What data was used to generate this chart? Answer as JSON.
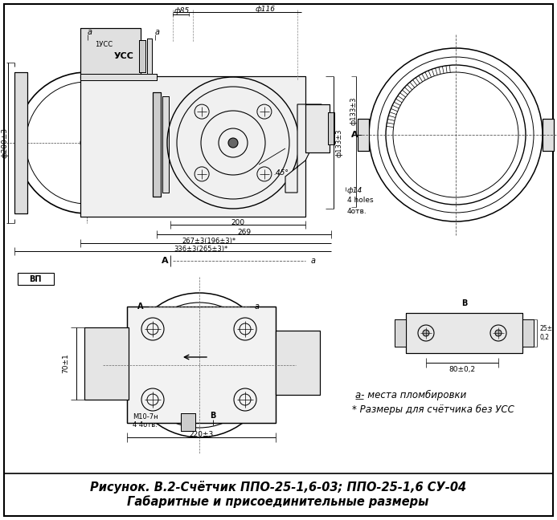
{
  "title_line1": "Рисунок. В.2-Счётчик ППО-25-1,6-03; ППО-25-1,6 СУ-04",
  "title_line2": "Габаритные и присоединительные размеры",
  "bg_color": "#ffffff",
  "line_color": "#000000",
  "text_color": "#000000",
  "annotation1": "а- места пломбировки",
  "annotation2": "* Размеры для счётчика без УСС",
  "fig_width": 6.93,
  "fig_height": 6.48,
  "dpi": 100
}
